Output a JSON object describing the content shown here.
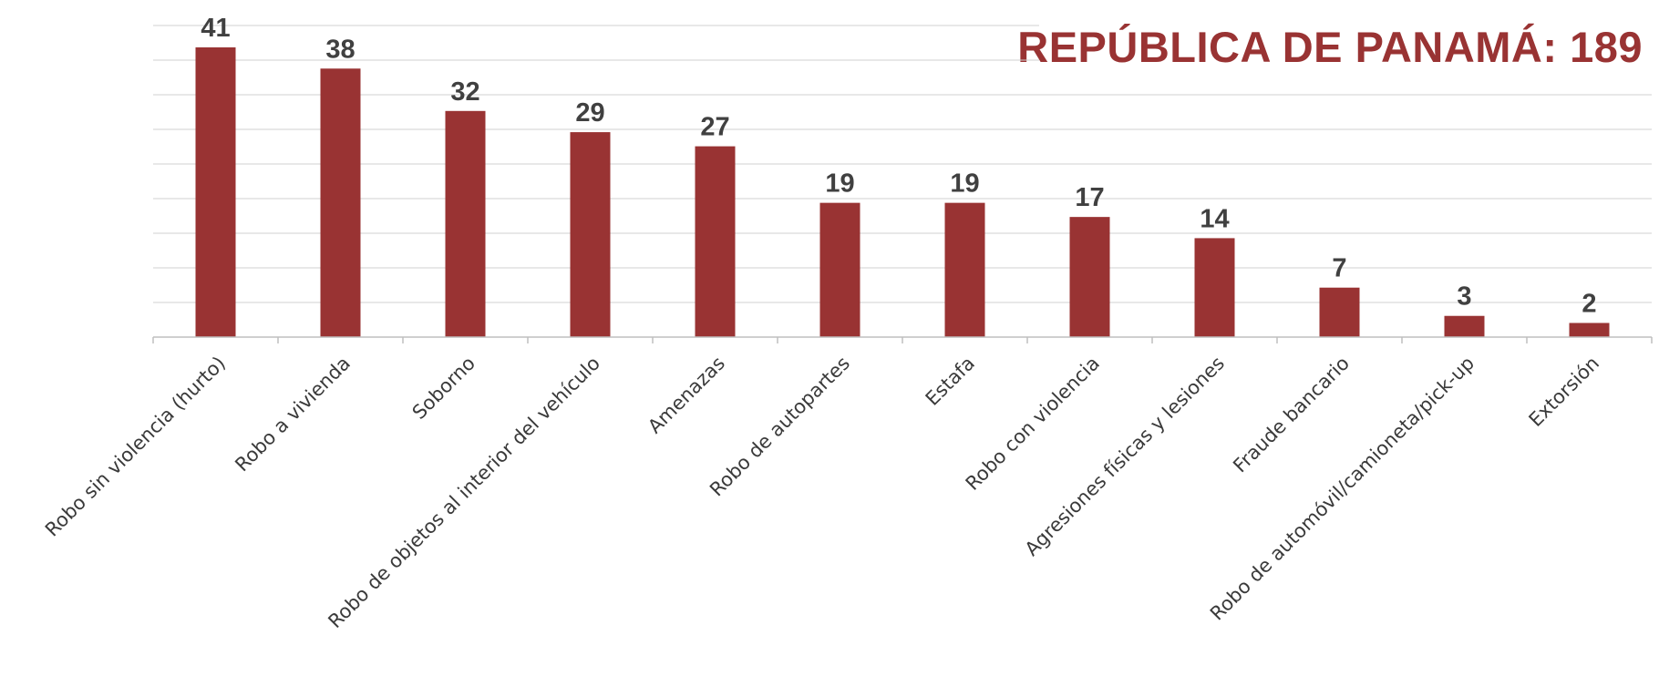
{
  "chart_data": {
    "type": "bar",
    "title": "REPÚBLICA DE PANAMÁ: 189",
    "categories": [
      "Robo sin violencia (hurto)",
      "Robo a vivienda",
      "Soborno",
      "Robo de objetos al interior del vehículo",
      "Amenazas",
      "Robo de autopartes",
      "Estafa",
      "Robo con violencia",
      "Agresiones físicas y lesiones",
      "Fraude bancario",
      "Robo de automóvil/camioneta/pick-up",
      "Extorsión"
    ],
    "values": [
      41,
      38,
      32,
      29,
      27,
      19,
      19,
      17,
      14,
      7,
      3,
      2
    ],
    "bar_color": "#993333",
    "ylim": [
      0,
      41
    ],
    "grid": true,
    "legend": "none"
  }
}
